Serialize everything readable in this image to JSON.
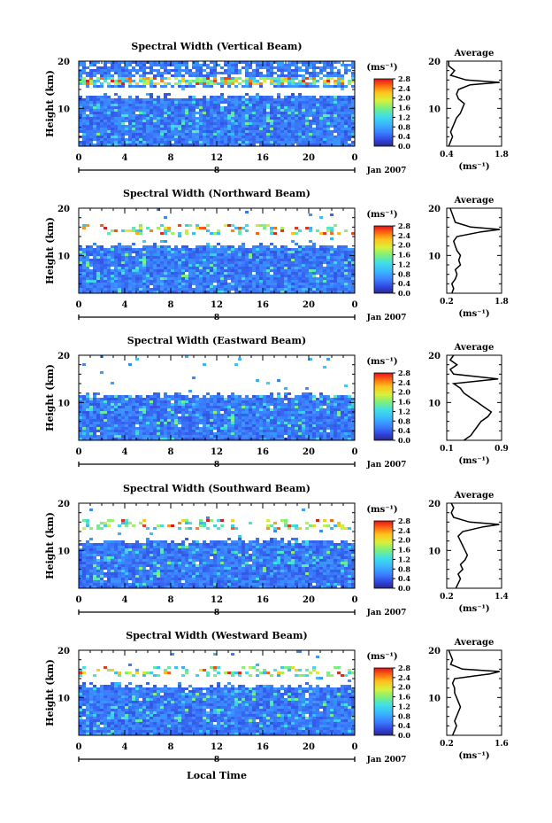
{
  "figure": {
    "date_label": "Jan 2007",
    "day_marker": "8",
    "xlabel_bottom": "Local Time"
  },
  "chart_data": [
    {
      "type": "heatmap",
      "title": "Spectral Width (Vertical Beam)",
      "xlabel": "",
      "ylabel": "Height (km)",
      "xlim": [
        0,
        24
      ],
      "ylim": [
        2,
        20
      ],
      "xticks": [
        "0",
        "4",
        "8",
        "12",
        "16",
        "20",
        "0"
      ],
      "yticks": [
        "10",
        "20"
      ],
      "colorbar": {
        "unit": "(ms⁻¹)",
        "range": [
          0,
          2.8
        ],
        "ticks": [
          "2.8",
          "2.4",
          "2.0",
          "1.6",
          "1.2",
          "0.8",
          "0.4",
          "0.0"
        ]
      },
      "average": {
        "title": "Average",
        "xlabel": "(ms⁻¹)",
        "xlim": [
          0.4,
          1.8
        ],
        "xtick_labels": [
          "0.4",
          "1.8"
        ],
        "heights": [
          2,
          3,
          4,
          5,
          6,
          7,
          8,
          9,
          10,
          11,
          12,
          13,
          14,
          15,
          15.5,
          16,
          17,
          18,
          19,
          20
        ],
        "values": [
          0.45,
          0.5,
          0.55,
          0.5,
          0.55,
          0.6,
          0.65,
          0.75,
          0.8,
          0.85,
          0.7,
          0.65,
          0.7,
          1.0,
          1.75,
          0.9,
          0.5,
          0.6,
          0.45,
          0.45
        ]
      },
      "features": {
        "rain_band_height": 16,
        "tropopause_gap": [
          12.5,
          14.5
        ]
      }
    },
    {
      "type": "heatmap",
      "title": "Spectral Width (Northward Beam)",
      "xlabel": "",
      "ylabel": "Height (km)",
      "xlim": [
        0,
        24
      ],
      "ylim": [
        2,
        20
      ],
      "xticks": [
        "0",
        "4",
        "8",
        "12",
        "16",
        "20",
        "0"
      ],
      "yticks": [
        "10",
        "20"
      ],
      "colorbar": {
        "unit": "(ms⁻¹)",
        "range": [
          0,
          2.8
        ],
        "ticks": [
          "2.8",
          "2.4",
          "2.0",
          "1.6",
          "1.2",
          "0.8",
          "0.4",
          "0.0"
        ]
      },
      "average": {
        "title": "Average",
        "xlabel": "(ms⁻¹)",
        "xlim": [
          0.2,
          1.8
        ],
        "xtick_labels": [
          "0.2",
          "1.8"
        ],
        "heights": [
          2,
          3,
          4,
          5,
          6,
          7,
          8,
          9,
          10,
          11,
          12,
          13,
          14,
          15,
          15.5,
          16,
          17,
          18,
          19,
          20
        ],
        "values": [
          0.35,
          0.4,
          0.35,
          0.45,
          0.5,
          0.45,
          0.6,
          0.55,
          0.6,
          0.5,
          0.45,
          0.4,
          0.5,
          1.2,
          1.75,
          0.9,
          0.45,
          0.4,
          0.35,
          0.3
        ]
      },
      "features": {
        "rain_band_height": 15.5,
        "tropopause_gap": [
          12,
          14.5
        ]
      }
    },
    {
      "type": "heatmap",
      "title": "Spectral Width (Eastward Beam)",
      "xlabel": "",
      "ylabel": "Height (km)",
      "xlim": [
        0,
        24
      ],
      "ylim": [
        2,
        20
      ],
      "xticks": [
        "0",
        "4",
        "8",
        "12",
        "16",
        "20",
        "0"
      ],
      "yticks": [
        "10",
        "20"
      ],
      "colorbar": {
        "unit": "(ms⁻¹)",
        "range": [
          0,
          2.8
        ],
        "ticks": [
          "2.8",
          "2.4",
          "2.0",
          "1.6",
          "1.2",
          "0.8",
          "0.4",
          "0.0"
        ]
      },
      "average": {
        "title": "Average",
        "xlabel": "(ms⁻¹)",
        "xlim": [
          0.1,
          0.9
        ],
        "xtick_labels": [
          "0.1",
          "0.9"
        ],
        "heights": [
          2,
          3,
          4,
          5,
          6,
          7,
          8,
          9,
          10,
          11,
          12,
          13,
          14,
          15,
          16,
          17,
          18,
          19,
          20
        ],
        "values": [
          0.35,
          0.45,
          0.5,
          0.55,
          0.6,
          0.7,
          0.75,
          0.65,
          0.55,
          0.45,
          0.35,
          0.3,
          0.2,
          0.85,
          0.2,
          0.15,
          0.25,
          0.15,
          0.2
        ]
      },
      "features": {
        "rain_band_height": 0,
        "tropopause_gap": [
          11.5,
          20
        ]
      }
    },
    {
      "type": "heatmap",
      "title": "Spectral Width (Southward Beam)",
      "xlabel": "",
      "ylabel": "Height (km)",
      "xlim": [
        0,
        24
      ],
      "ylim": [
        2,
        20
      ],
      "xticks": [
        "0",
        "4",
        "8",
        "12",
        "16",
        "20",
        "0"
      ],
      "yticks": [
        "10",
        "20"
      ],
      "colorbar": {
        "unit": "(ms⁻¹)",
        "range": [
          0,
          2.8
        ],
        "ticks": [
          "2.8",
          "2.4",
          "2.0",
          "1.6",
          "1.2",
          "0.8",
          "0.4",
          "0.0"
        ]
      },
      "average": {
        "title": "Average",
        "xlabel": "(ms⁻¹)",
        "xlim": [
          0.2,
          1.4
        ],
        "xtick_labels": [
          "0.2",
          "1.4"
        ],
        "heights": [
          2,
          3,
          4,
          5,
          6,
          7,
          8,
          9,
          10,
          11,
          12,
          13,
          14,
          15,
          15.5,
          16,
          17,
          18,
          19,
          20
        ],
        "values": [
          0.4,
          0.45,
          0.5,
          0.45,
          0.55,
          0.5,
          0.6,
          0.65,
          0.6,
          0.55,
          0.5,
          0.45,
          0.55,
          1.0,
          1.35,
          0.7,
          0.35,
          0.3,
          0.35,
          0.3
        ]
      },
      "features": {
        "rain_band_height": 15.5,
        "tropopause_gap": [
          12,
          14.5
        ]
      }
    },
    {
      "type": "heatmap",
      "title": "Spectral Width (Westward Beam)",
      "xlabel": "",
      "ylabel": "Height (km)",
      "xlim": [
        0,
        24
      ],
      "ylim": [
        2,
        20
      ],
      "xticks": [
        "0",
        "4",
        "8",
        "12",
        "16",
        "20",
        "0"
      ],
      "yticks": [
        "10",
        "20"
      ],
      "colorbar": {
        "unit": "(ms⁻¹)",
        "range": [
          0,
          2.8
        ],
        "ticks": [
          "2.8",
          "2.4",
          "2.0",
          "1.6",
          "1.2",
          "0.8",
          "0.4",
          "0.0"
        ]
      },
      "average": {
        "title": "Average",
        "xlabel": "(ms⁻¹)",
        "xlim": [
          0.2,
          1.6
        ],
        "xtick_labels": [
          "0.2",
          "1.6"
        ],
        "heights": [
          2,
          3,
          4,
          5,
          6,
          7,
          8,
          9,
          10,
          11,
          12,
          13,
          14,
          15,
          15.5,
          16,
          17,
          18,
          19,
          20
        ],
        "values": [
          0.35,
          0.4,
          0.45,
          0.4,
          0.45,
          0.5,
          0.55,
          0.5,
          0.45,
          0.4,
          0.4,
          0.35,
          0.4,
          1.3,
          1.55,
          0.6,
          0.3,
          0.35,
          0.3,
          0.25
        ]
      },
      "features": {
        "rain_band_height": 15.5,
        "tropopause_gap": [
          12.5,
          14.5
        ]
      }
    }
  ]
}
